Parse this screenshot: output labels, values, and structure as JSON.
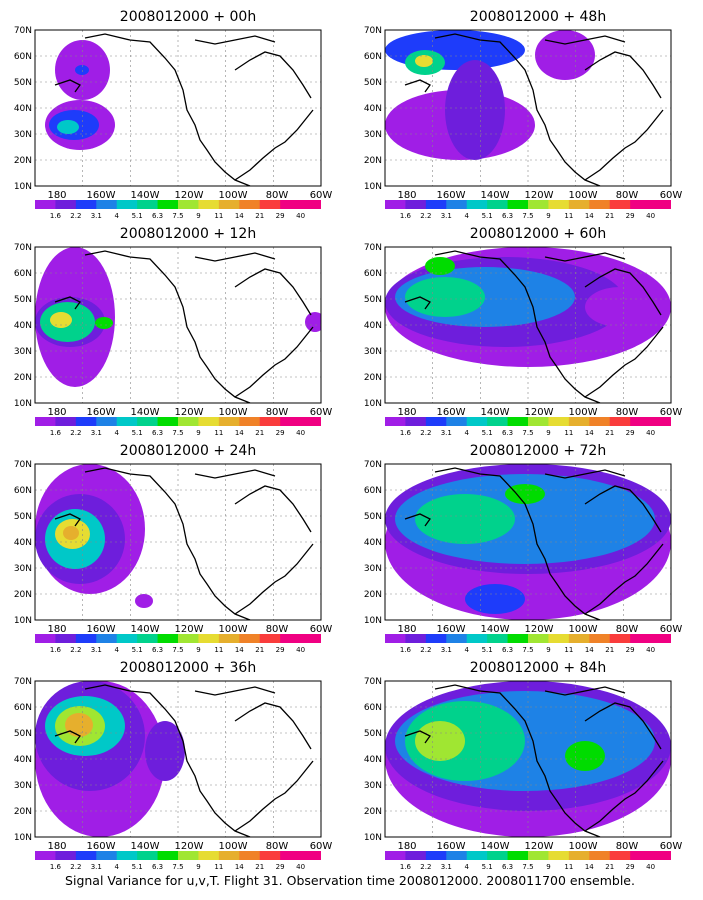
{
  "colorbar": {
    "labels": [
      "1.6",
      "2.2",
      "3.1",
      "4",
      "5.1",
      "6.3",
      "7.5",
      "9",
      "11",
      "14",
      "21",
      "29",
      "40"
    ],
    "colors": [
      "#a01ee6",
      "#6e1edc",
      "#1e3cfa",
      "#1e82e6",
      "#00c8c8",
      "#00d28c",
      "#00dc00",
      "#a0e632",
      "#e6dc32",
      "#e6af2d",
      "#f08228",
      "#fa3c3c",
      "#f00082"
    ]
  },
  "axes": {
    "lon_labels": [
      "180",
      "160W",
      "140W",
      "120W",
      "100W",
      "80W",
      "60W"
    ],
    "lat_labels": [
      "70N",
      "60N",
      "50N",
      "40N",
      "30N",
      "20N",
      "10N"
    ]
  },
  "panels": [
    {
      "title": "2008012000 + 00h"
    },
    {
      "title": "2008012000 + 48h"
    },
    {
      "title": "2008012000 + 12h"
    },
    {
      "title": "2008012000 + 60h"
    },
    {
      "title": "2008012000 + 24h"
    },
    {
      "title": "2008012000 + 72h"
    },
    {
      "title": "2008012000 + 36h"
    },
    {
      "title": "2008012000 + 84h"
    }
  ],
  "footer": "Signal Variance for u,v,T. Flight 31. Observation time 2008012000. 2008011700 ensemble."
}
